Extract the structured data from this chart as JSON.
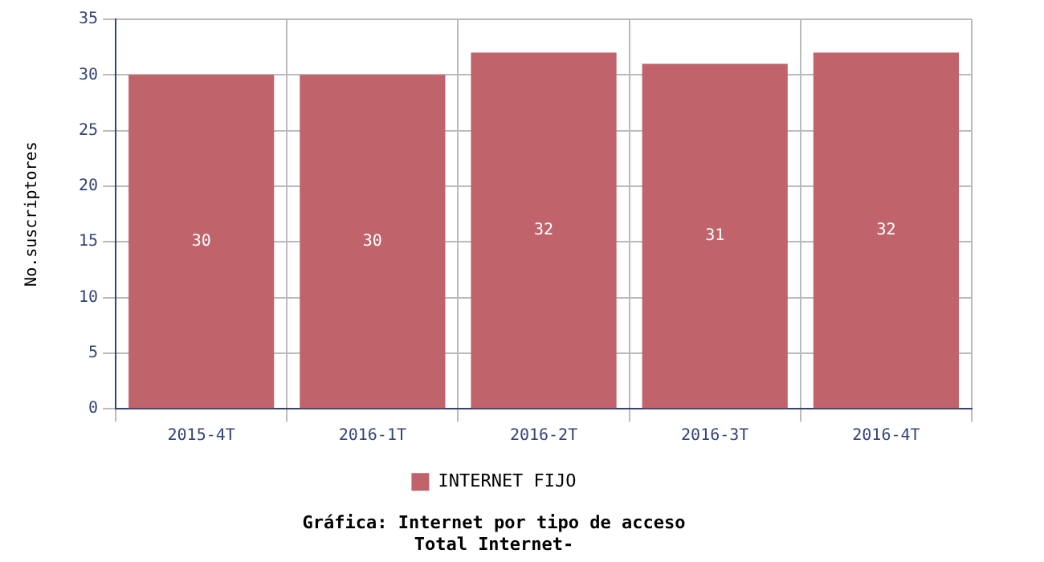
{
  "chart_data": {
    "type": "bar",
    "title": "Gráfica: Internet por tipo de acceso",
    "subtitle": "Total Internet-",
    "ylabel": "No.suscriptores",
    "categories": [
      "2015-4T",
      "2016-1T",
      "2016-2T",
      "2016-3T",
      "2016-4T"
    ],
    "series": [
      {
        "name": "INTERNET FIJO",
        "color": "#c0636b",
        "values": [
          30,
          30,
          32,
          31,
          32
        ]
      }
    ],
    "ylim": [
      0,
      35
    ],
    "yticks": [
      0,
      5,
      10,
      15,
      20,
      25,
      30,
      35
    ],
    "grid": true,
    "legend": "bottom",
    "data_labels": true
  }
}
